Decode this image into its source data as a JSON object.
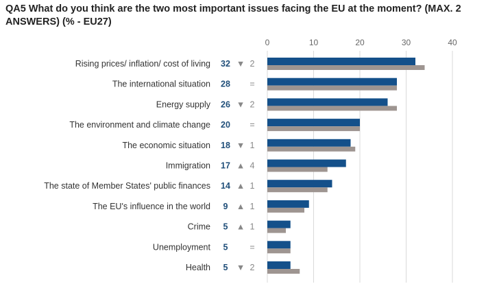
{
  "chart_data": {
    "type": "bar",
    "orientation": "horizontal",
    "title": "QA5  What do you think are the two most important issues facing the EU at the moment? (MAX. 2 ANSWERS) (% - EU27)",
    "categories": [
      "Rising prices/ inflation/ cost of living",
      "The international situation",
      "Energy supply",
      "The environment and climate change",
      "The economic situation",
      "Immigration",
      "The state of Member States' public finances",
      "The EU's influence in the world",
      "Crime",
      "Unemployment",
      "Health"
    ],
    "series": [
      {
        "color": "#14508a",
        "values": [
          32,
          28,
          26,
          20,
          18,
          17,
          14,
          9,
          5,
          5,
          5
        ]
      },
      {
        "color": "#9e9591",
        "values": [
          34,
          28,
          28,
          20,
          19,
          13,
          13,
          8,
          4,
          5,
          7
        ]
      }
    ],
    "value_labels": [
      "32",
      "28",
      "26",
      "20",
      "18",
      "17",
      "14",
      "9",
      "5",
      "5",
      "5"
    ],
    "changes": [
      {
        "symbol": "▼",
        "value": "2"
      },
      {
        "symbol": "",
        "value": "="
      },
      {
        "symbol": "▼",
        "value": "2"
      },
      {
        "symbol": "",
        "value": "="
      },
      {
        "symbol": "▼",
        "value": "1"
      },
      {
        "symbol": "▲",
        "value": "4"
      },
      {
        "symbol": "▲",
        "value": "1"
      },
      {
        "symbol": "▲",
        "value": "1"
      },
      {
        "symbol": "▲",
        "value": "1"
      },
      {
        "symbol": "",
        "value": "="
      },
      {
        "symbol": "▼",
        "value": "2"
      }
    ],
    "xlim": [
      0,
      40
    ],
    "xticks": [
      "0",
      "10",
      "20",
      "30",
      "40"
    ],
    "grid": true
  }
}
